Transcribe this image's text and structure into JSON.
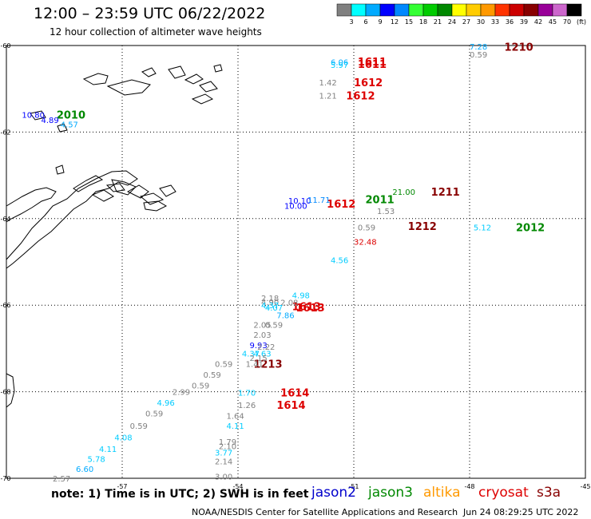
{
  "title": "12:00 – 23:59 UTC 06/22/2022",
  "subtitle": "12 hour collection of altimeter wave heights",
  "note": "note:  1) Time is in UTC;  2) SWH is in feet",
  "satellites": [
    {
      "name": "jason2",
      "color": "#0000cc"
    },
    {
      "name": "jason3",
      "color": "#008800"
    },
    {
      "name": "altika",
      "color": "#ff9900"
    },
    {
      "name": "cryosat",
      "color": "#dd0000"
    },
    {
      "name": "s3a",
      "color": "#880000"
    }
  ],
  "credit": "NOAA/NESDIS Center for Satellite Applications and Research",
  "credit_date": "Jun 24 08:29:25 UTC 2022",
  "colorbar": {
    "labels": [
      "3",
      "6",
      "9",
      "12",
      "15",
      "18",
      "21",
      "24",
      "27",
      "30",
      "33",
      "36",
      "39",
      "42",
      "45",
      "70",
      "(ft)"
    ],
    "colors": [
      "#808080",
      "#00ffff",
      "#00aaff",
      "#0000ff",
      "#0088ff",
      "#33ff33",
      "#00cc00",
      "#008800",
      "#ffff00",
      "#ffcc00",
      "#ff9900",
      "#ff3300",
      "#cc0000",
      "#880000",
      "#990099",
      "#cc66cc",
      "#000000"
    ]
  },
  "chart_data": {
    "type": "scatter",
    "title": "12:00 – 23:59 UTC 06/22/2022",
    "subtitle": "12 hour collection of altimeter wave heights",
    "xlabel": "",
    "ylabel": "",
    "xlim": [
      -60,
      -45
    ],
    "ylim": [
      -70,
      -60
    ],
    "x_ticks": [
      -57,
      -54,
      -51,
      -48,
      -45
    ],
    "x_tick_labels": [
      "-57",
      "-54",
      "-51",
      "-48",
      "-45"
    ],
    "y_ticks": [
      -60,
      -62,
      -64,
      -66,
      -68,
      -70
    ],
    "y_tick_labels": [
      "-60",
      "-62",
      "-64",
      "-66",
      "-68",
      "-70"
    ],
    "grid": true,
    "time_labels": [
      {
        "text": "1210",
        "lon": -47.1,
        "lat": -60.03,
        "color": "#880000"
      },
      {
        "text": "1611",
        "lon": -50.9,
        "lat": -60.37,
        "color": "#dd0000"
      },
      {
        "text": "1611",
        "lon": -50.9,
        "lat": -60.42,
        "color": "#dd0000"
      },
      {
        "text": "1612",
        "lon": -51.0,
        "lat": -60.85,
        "color": "#dd0000"
      },
      {
        "text": "1612",
        "lon": -51.2,
        "lat": -61.15,
        "color": "#dd0000"
      },
      {
        "text": "2010",
        "lon": -58.7,
        "lat": -61.6,
        "color": "#008800"
      },
      {
        "text": "1211",
        "lon": -49.0,
        "lat": -63.38,
        "color": "#880000"
      },
      {
        "text": "2011",
        "lon": -50.7,
        "lat": -63.55,
        "color": "#008800"
      },
      {
        "text": "1612",
        "lon": -51.7,
        "lat": -63.65,
        "color": "#dd0000"
      },
      {
        "text": "1212",
        "lon": -49.6,
        "lat": -64.17,
        "color": "#880000"
      },
      {
        "text": "2012",
        "lon": -46.8,
        "lat": -64.2,
        "color": "#008800"
      },
      {
        "text": "1613",
        "lon": -52.6,
        "lat": -66.02,
        "color": "#dd0000"
      },
      {
        "text": "1613",
        "lon": -52.5,
        "lat": -66.05,
        "color": "#dd0000"
      },
      {
        "text": "1213",
        "lon": -53.6,
        "lat": -67.35,
        "color": "#880000"
      },
      {
        "text": "1614",
        "lon": -52.9,
        "lat": -68.02,
        "color": "#dd0000"
      },
      {
        "text": "1614",
        "lon": -53.0,
        "lat": -68.3,
        "color": "#dd0000"
      }
    ],
    "points": [
      {
        "swh": "7.28",
        "lon": -48.0,
        "lat": -60.02,
        "color": "#00aaff"
      },
      {
        "swh": "0.59",
        "lon": -48.0,
        "lat": -60.2,
        "color": "#808080"
      },
      {
        "swh": "6.06",
        "lon": -51.6,
        "lat": -60.38,
        "color": "#00aaff"
      },
      {
        "swh": "5.97",
        "lon": -51.6,
        "lat": -60.44,
        "color": "#00ccff"
      },
      {
        "swh": "1.42",
        "lon": -51.9,
        "lat": -60.85,
        "color": "#808080"
      },
      {
        "swh": "1.21",
        "lon": -51.9,
        "lat": -61.15,
        "color": "#808080"
      },
      {
        "swh": "10.80",
        "lon": -59.6,
        "lat": -61.6,
        "color": "#0000ff"
      },
      {
        "swh": "4.89",
        "lon": -59.1,
        "lat": -61.72,
        "color": "#0000ff"
      },
      {
        "swh": "4.57",
        "lon": -58.6,
        "lat": -61.82,
        "color": "#00aaff"
      },
      {
        "swh": "21.00",
        "lon": -50.0,
        "lat": -63.38,
        "color": "#008800"
      },
      {
        "swh": "10.10",
        "lon": -52.7,
        "lat": -63.58,
        "color": "#0000ff"
      },
      {
        "swh": "11.71",
        "lon": -52.2,
        "lat": -63.56,
        "color": "#0088ff"
      },
      {
        "swh": "10.00",
        "lon": -52.8,
        "lat": -63.7,
        "color": "#0000ff"
      },
      {
        "swh": "1.53",
        "lon": -50.4,
        "lat": -63.82,
        "color": "#808080"
      },
      {
        "swh": "0.59",
        "lon": -50.9,
        "lat": -64.2,
        "color": "#808080"
      },
      {
        "swh": "5.12",
        "lon": -47.9,
        "lat": -64.2,
        "color": "#00ccff"
      },
      {
        "swh": "32.48",
        "lon": -51.0,
        "lat": -64.53,
        "color": "#dd0000"
      },
      {
        "swh": "4.56",
        "lon": -51.6,
        "lat": -64.95,
        "color": "#00ccff"
      },
      {
        "swh": "4.98",
        "lon": -52.6,
        "lat": -65.77,
        "color": "#00ccff"
      },
      {
        "swh": "2.18",
        "lon": -53.4,
        "lat": -65.83,
        "color": "#808080"
      },
      {
        "swh": "4.90",
        "lon": -53.4,
        "lat": -65.92,
        "color": "#808080"
      },
      {
        "swh": "2.08",
        "lon": -52.9,
        "lat": -65.93,
        "color": "#808080"
      },
      {
        "swh": "4.37",
        "lon": -53.4,
        "lat": -66.0,
        "color": "#00ccff"
      },
      {
        "swh": "4.07",
        "lon": -53.3,
        "lat": -66.05,
        "color": "#00ccff"
      },
      {
        "swh": "7.86",
        "lon": -53.0,
        "lat": -66.23,
        "color": "#00aaff"
      },
      {
        "swh": "2.05",
        "lon": -53.6,
        "lat": -66.45,
        "color": "#808080"
      },
      {
        "swh": "0.59",
        "lon": -53.3,
        "lat": -66.45,
        "color": "#808080"
      },
      {
        "swh": "2.03",
        "lon": -53.6,
        "lat": -66.68,
        "color": "#808080"
      },
      {
        "swh": "9.93",
        "lon": -53.7,
        "lat": -66.92,
        "color": "#0000ff"
      },
      {
        "swh": "2.22",
        "lon": -53.5,
        "lat": -66.96,
        "color": "#808080"
      },
      {
        "swh": "4.37",
        "lon": -53.9,
        "lat": -67.11,
        "color": "#00ccff"
      },
      {
        "swh": "4.63",
        "lon": -53.6,
        "lat": -67.11,
        "color": "#00ccff"
      },
      {
        "swh": "2.15",
        "lon": -53.7,
        "lat": -67.21,
        "color": "#808080"
      },
      {
        "swh": "0.59",
        "lon": -54.6,
        "lat": -67.35,
        "color": "#808080"
      },
      {
        "swh": "1.41",
        "lon": -53.8,
        "lat": -67.35,
        "color": "#808080"
      },
      {
        "swh": "0.59",
        "lon": -54.9,
        "lat": -67.6,
        "color": "#808080"
      },
      {
        "swh": "0.59",
        "lon": -55.2,
        "lat": -67.85,
        "color": "#808080"
      },
      {
        "swh": "2.99",
        "lon": -55.7,
        "lat": -68.0,
        "color": "#808080"
      },
      {
        "swh": "1.70",
        "lon": -54.0,
        "lat": -68.02,
        "color": "#00ccff"
      },
      {
        "swh": "4.96",
        "lon": -56.1,
        "lat": -68.25,
        "color": "#00ccff"
      },
      {
        "swh": "1.26",
        "lon": -54.0,
        "lat": -68.3,
        "color": "#808080"
      },
      {
        "swh": "0.59",
        "lon": -56.4,
        "lat": -68.5,
        "color": "#808080"
      },
      {
        "swh": "1.64",
        "lon": -54.3,
        "lat": -68.55,
        "color": "#808080"
      },
      {
        "swh": "0.59",
        "lon": -56.8,
        "lat": -68.78,
        "color": "#808080"
      },
      {
        "swh": "4.11",
        "lon": -54.3,
        "lat": -68.78,
        "color": "#00ccff"
      },
      {
        "swh": "4.08",
        "lon": -57.2,
        "lat": -69.05,
        "color": "#00ccff"
      },
      {
        "swh": "1.79",
        "lon": -54.5,
        "lat": -69.15,
        "color": "#808080"
      },
      {
        "swh": "2.10",
        "lon": -54.5,
        "lat": -69.25,
        "color": "#808080"
      },
      {
        "swh": "4.11",
        "lon": -57.6,
        "lat": -69.32,
        "color": "#00ccff"
      },
      {
        "swh": "3.77",
        "lon": -54.6,
        "lat": -69.4,
        "color": "#00ccff"
      },
      {
        "swh": "5.78",
        "lon": -57.9,
        "lat": -69.55,
        "color": "#00ccff"
      },
      {
        "swh": "2.14",
        "lon": -54.6,
        "lat": -69.6,
        "color": "#808080"
      },
      {
        "swh": "6.60",
        "lon": -58.2,
        "lat": -69.78,
        "color": "#00aaff"
      },
      {
        "swh": "3.00",
        "lon": -54.6,
        "lat": -69.95,
        "color": "#808080"
      },
      {
        "swh": "2.57",
        "lon": -58.8,
        "lat": -70.0,
        "color": "#808080"
      }
    ]
  }
}
